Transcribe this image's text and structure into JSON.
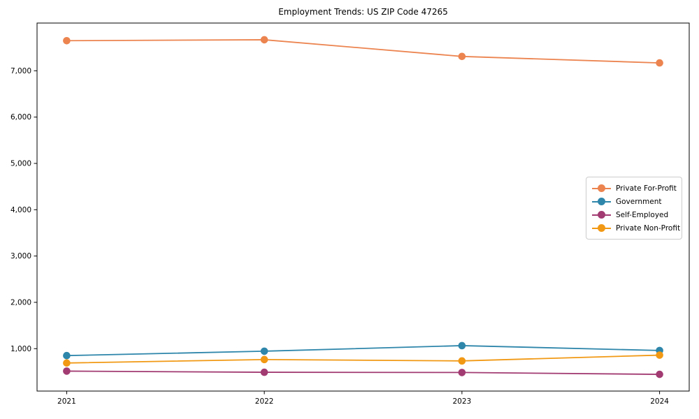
{
  "title": "Employment Trends: US ZIP Code 47265",
  "chart_data": {
    "type": "line",
    "title": "Employment Trends: US ZIP Code 47265",
    "xlabel": "",
    "ylabel": "",
    "x": [
      2021,
      2022,
      2023,
      2024
    ],
    "x_tick_labels": [
      "2021",
      "2022",
      "2023",
      "2024"
    ],
    "series": [
      {
        "name": "Private For-Profit",
        "color": "#EC8450",
        "values": [
          7650,
          7670,
          7310,
          7170
        ]
      },
      {
        "name": "Government",
        "color": "#2E86AB",
        "values": [
          850,
          945,
          1065,
          960
        ]
      },
      {
        "name": "Self-Employed",
        "color": "#A23B72",
        "values": [
          515,
          490,
          485,
          445
        ]
      },
      {
        "name": "Private Non-Profit",
        "color": "#F19914",
        "values": [
          690,
          765,
          735,
          860
        ]
      }
    ],
    "yticks": [
      1000,
      2000,
      3000,
      4000,
      5000,
      6000,
      7000
    ],
    "ytick_labels": [
      "1,000",
      "2,000",
      "3,000",
      "4,000",
      "5,000",
      "6,000",
      "7,000"
    ],
    "xlim": [
      2020.85,
      2024.15
    ],
    "ylim": [
      84,
      8031
    ],
    "grid": false,
    "legend_position": "right-center",
    "axis_color": "#000000",
    "background_color": "#ffffff"
  }
}
